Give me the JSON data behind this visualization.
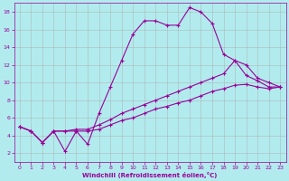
{
  "xlabel": "Windchill (Refroidissement éolien,°C)",
  "background_color": "#b2ebee",
  "grid_color": "#aaaaaa",
  "line_color": "#990099",
  "xlim": [
    -0.5,
    23.5
  ],
  "ylim": [
    1,
    19
  ],
  "xticks": [
    0,
    1,
    2,
    3,
    4,
    5,
    6,
    7,
    8,
    9,
    10,
    11,
    12,
    13,
    14,
    15,
    16,
    17,
    18,
    19,
    20,
    21,
    22,
    23
  ],
  "yticks": [
    2,
    4,
    6,
    8,
    10,
    12,
    14,
    16,
    18
  ],
  "series": [
    {
      "x": [
        0,
        1,
        2,
        3,
        4,
        5,
        6,
        7,
        8,
        9,
        10,
        11,
        12,
        13,
        14,
        15,
        16,
        17,
        18,
        19,
        20,
        21,
        22,
        23
      ],
      "y": [
        5.0,
        4.5,
        3.2,
        4.5,
        2.2,
        4.5,
        3.0,
        6.5,
        9.5,
        12.5,
        15.5,
        17.0,
        17.0,
        16.5,
        16.5,
        18.5,
        18.0,
        16.7,
        13.2,
        12.5,
        10.8,
        10.2,
        9.5,
        9.5
      ]
    },
    {
      "x": [
        0,
        1,
        2,
        3,
        4,
        5,
        6,
        7,
        8,
        9,
        10,
        11,
        12,
        13,
        14,
        15,
        16,
        17,
        18,
        19,
        20,
        21,
        22,
        23
      ],
      "y": [
        5.0,
        4.5,
        3.2,
        4.5,
        4.5,
        4.7,
        4.7,
        5.2,
        5.8,
        6.5,
        7.0,
        7.5,
        8.0,
        8.5,
        9.0,
        9.5,
        10.0,
        10.5,
        11.0,
        12.5,
        12.0,
        10.5,
        10.0,
        9.5
      ]
    },
    {
      "x": [
        0,
        1,
        2,
        3,
        4,
        5,
        6,
        7,
        8,
        9,
        10,
        11,
        12,
        13,
        14,
        15,
        16,
        17,
        18,
        19,
        20,
        21,
        22,
        23
      ],
      "y": [
        5.0,
        4.5,
        3.2,
        4.5,
        4.5,
        4.5,
        4.5,
        4.7,
        5.2,
        5.7,
        6.0,
        6.5,
        7.0,
        7.3,
        7.7,
        8.0,
        8.5,
        9.0,
        9.3,
        9.7,
        9.8,
        9.5,
        9.3,
        9.5
      ]
    }
  ]
}
